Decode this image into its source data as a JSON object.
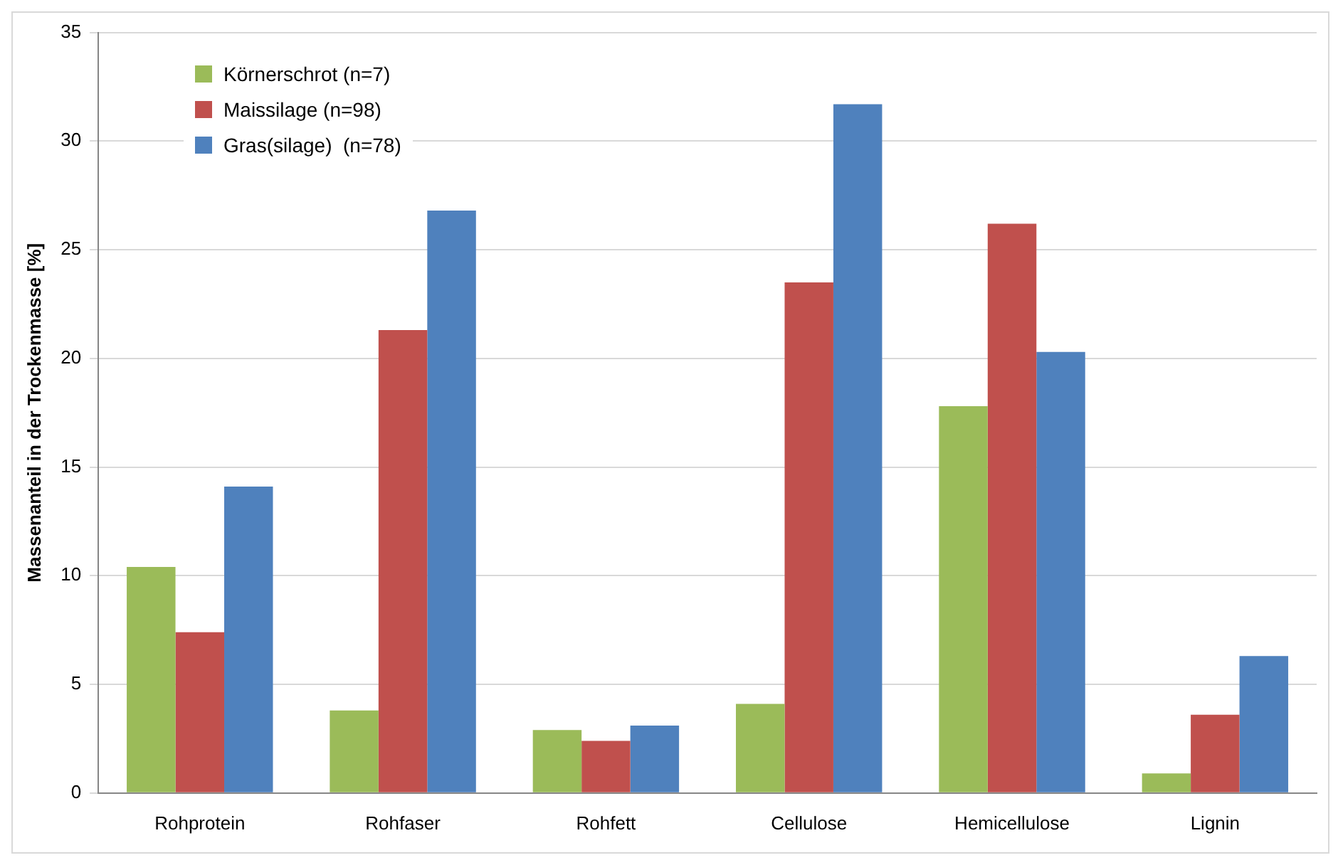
{
  "chart_data": {
    "type": "bar",
    "ylabel": "Massenanteil in der Trockenmasse [%]",
    "categories": [
      "Rohprotein",
      "Rohfaser",
      "Rohfett",
      "Cellulose",
      "Hemicellulose",
      "Lignin"
    ],
    "series": [
      {
        "name": "Körnerschrot (n=7)",
        "color": "#9bbb59",
        "values": [
          10.4,
          3.8,
          2.9,
          4.1,
          17.8,
          0.9
        ]
      },
      {
        "name": "Maissilage (n=98)",
        "color": "#c0504d",
        "values": [
          7.4,
          21.3,
          2.4,
          23.5,
          26.2,
          3.6
        ]
      },
      {
        "name": "Gras(silage)  (n=78)",
        "color": "#4f81bd",
        "values": [
          14.1,
          26.8,
          3.1,
          31.7,
          20.3,
          6.3
        ]
      }
    ],
    "ylim": [
      0,
      35
    ],
    "yticks": [
      0,
      5,
      10,
      15,
      20,
      25,
      30,
      35
    ],
    "grid": "y",
    "legend": "top left"
  }
}
